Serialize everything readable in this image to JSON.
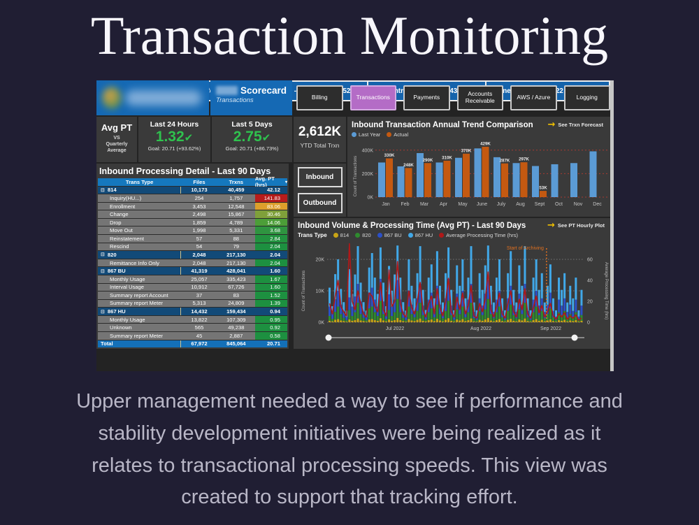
{
  "page": {
    "title": "Transaction Monitoring",
    "description_lines": [
      "Upper management needed a way to see if performance and",
      "stability development initiatives were being realized as it",
      "relates to transactional processing speeds. This view was",
      "created to support that tracking effort."
    ]
  },
  "dashboard": {
    "scorecard": {
      "title": "Scorecard",
      "subtitle": "Transactions"
    },
    "tabs": [
      {
        "label": "Billing",
        "active": false
      },
      {
        "label": "Transactions",
        "active": true
      },
      {
        "label": "Payments",
        "active": false
      },
      {
        "label": "Accounts Receivable",
        "active": false
      },
      {
        "label": "AWS / Azure",
        "active": false
      },
      {
        "label": "Logging",
        "active": false
      }
    ],
    "kpi": {
      "avg_pt": {
        "title": "Avg PT",
        "vs": "VS",
        "subtitle": "Quarterly Average"
      },
      "last24": {
        "label": "Last 24 Hours",
        "value": "1.32",
        "check": "✔",
        "goal": "Goal: 20.71 (+93.62%)"
      },
      "last5": {
        "label": "Last 5 Days",
        "value": "2.75",
        "check": "✔",
        "goal": "Goal: 20.71 (+86.73%)"
      },
      "ytd": {
        "value": "2,612K",
        "label": "YTD Total Trxn"
      }
    },
    "io_buttons": [
      {
        "label": "Inbound"
      },
      {
        "label": "Outbound"
      }
    ],
    "table": {
      "title": "Inbound Processing Detail - Last 90 Days",
      "columns": [
        "Trans Type",
        "Files",
        "Trxns",
        "Avg. PT (hrs)"
      ],
      "rows": [
        {
          "type": "group",
          "name": "814",
          "files": "10,173",
          "trxns": "40,459",
          "avg": "42.12",
          "avg_bg": null
        },
        {
          "type": "child",
          "name": "Inquiry(HU...)",
          "files": "254",
          "trxns": "1,757",
          "avg": "141.83",
          "avg_bg": "#b71c1c"
        },
        {
          "type": "child",
          "name": "Enrollment",
          "files": "3,453",
          "trxns": "12,548",
          "avg": "83.06",
          "avg_bg": "#dd9f2b"
        },
        {
          "type": "child",
          "name": "Change",
          "files": "2,498",
          "trxns": "15,867",
          "avg": "30.46",
          "avg_bg": "#7fa03a"
        },
        {
          "type": "child",
          "name": "Drop",
          "files": "1,859",
          "trxns": "4,789",
          "avg": "14.06",
          "avg_bg": "#4c9e38"
        },
        {
          "type": "child",
          "name": "Move Out",
          "files": "1,998",
          "trxns": "5,331",
          "avg": "3.68",
          "avg_bg": "#2f9440"
        },
        {
          "type": "child",
          "name": "Reinstatement",
          "files": "57",
          "trxns": "88",
          "avg": "2.84",
          "avg_bg": "#22923f"
        },
        {
          "type": "child",
          "name": "Rescind",
          "files": "54",
          "trxns": "79",
          "avg": "2.04",
          "avg_bg": "#1d9040"
        },
        {
          "type": "group",
          "name": "820",
          "files": "2,048",
          "trxns": "217,130",
          "avg": "2.04",
          "avg_bg": null
        },
        {
          "type": "child",
          "name": "Remittance Info Only",
          "files": "2,048",
          "trxns": "217,130",
          "avg": "2.04",
          "avg_bg": "#1d9040"
        },
        {
          "type": "group",
          "name": "867 BU",
          "files": "41,319",
          "trxns": "428,041",
          "avg": "1.60",
          "avg_bg": null
        },
        {
          "type": "child",
          "name": "Monthly Usage",
          "files": "25,057",
          "trxns": "335,423",
          "avg": "1.67",
          "avg_bg": "#1d9040"
        },
        {
          "type": "child",
          "name": "Interval Usage",
          "files": "10,912",
          "trxns": "67,726",
          "avg": "1.60",
          "avg_bg": "#1d9040"
        },
        {
          "type": "child",
          "name": "Summary report Account",
          "files": "37",
          "trxns": "83",
          "avg": "1.52",
          "avg_bg": "#1d9040"
        },
        {
          "type": "child",
          "name": "Summary report Meter",
          "files": "5,313",
          "trxns": "24,809",
          "avg": "1.39",
          "avg_bg": "#1d9040"
        },
        {
          "type": "group",
          "name": "867 HU",
          "files": "14,432",
          "trxns": "159,434",
          "avg": "0.94",
          "avg_bg": null
        },
        {
          "type": "child",
          "name": "Monthly Usage",
          "files": "13,822",
          "trxns": "107,309",
          "avg": "0.95",
          "avg_bg": "#1d9040"
        },
        {
          "type": "child",
          "name": "Unknown",
          "files": "565",
          "trxns": "49,238",
          "avg": "0.92",
          "avg_bg": "#1d9040"
        },
        {
          "type": "child",
          "name": "Summary report Meter",
          "files": "45",
          "trxns": "2,887",
          "avg": "0.58",
          "avg_bg": "#1d9040"
        },
        {
          "type": "total",
          "name": "Total",
          "files": "67,972",
          "trxns": "845,064",
          "avg": "20.71",
          "avg_bg": null
        }
      ]
    },
    "refresh_bar": {
      "label": "Last Dashboard Refresh Date & Time",
      "timezones": [
        "US Eastern - 9/8/2022 7:43:52 AM",
        "US Central - 9/8/2022 6:43:52 AM",
        "Pune, India - 9/8/2022 5:13:52 PM"
      ]
    }
  },
  "chart_data": [
    {
      "type": "bar",
      "title": "Inbound Transaction Annual Trend Comparison",
      "link": "See Trxn Forecast",
      "categories": [
        "Jan",
        "Feb",
        "Mar",
        "Apr",
        "May",
        "June",
        "July",
        "Aug",
        "Sept",
        "Oct",
        "Nov",
        "Dec"
      ],
      "series": [
        {
          "name": "Last Year",
          "color": "#5b9bd5",
          "values": [
            295,
            262,
            375,
            295,
            335,
            415,
            340,
            290,
            265,
            280,
            290,
            390
          ]
        },
        {
          "name": "Actual",
          "color": "#c45911",
          "values": [
            330,
            248,
            290,
            310,
            370,
            429,
            287,
            297,
            53,
            null,
            null,
            null
          ]
        }
      ],
      "labels": [
        "330K",
        "248K",
        "290K",
        "310K",
        "370K",
        "429K",
        "287K",
        "297K",
        "53K",
        "",
        "",
        ""
      ],
      "ylabel": "Count of Transactions",
      "yticks": [
        [
          0,
          "0K"
        ],
        [
          200,
          "200K"
        ],
        [
          400,
          "400K"
        ]
      ],
      "ylim": [
        0,
        450
      ],
      "gridline_color": "#a83b32"
    },
    {
      "type": "stacked-bar-line",
      "title": "Inbound Volume & Processing Time (Avg PT) - Last 90 Days",
      "link": "See PT Hourly Plot",
      "legend_label": "Trans Type",
      "x_section_labels": [
        "Jul 2022",
        "Aug 2022",
        "Sep 2022"
      ],
      "ylabel_left": "Count of Transactions",
      "ylabel_right": "Average Processing Time (hrs)",
      "yticks_left": [
        [
          0,
          "0K"
        ],
        [
          10,
          "10K"
        ],
        [
          20,
          "20K"
        ]
      ],
      "yticks_right": [
        [
          0,
          "0"
        ],
        [
          20,
          "20"
        ],
        [
          40,
          "40"
        ],
        [
          60,
          "60"
        ]
      ],
      "annotation": {
        "text": "Start of Archiving",
        "color": "#e07020",
        "x_index": 77
      },
      "series": [
        {
          "name": "814",
          "color": "#c8a415",
          "values": [
            0.5,
            0.3,
            0.8,
            1.0,
            0.6,
            0.4,
            0.2,
            0.9,
            0.5,
            0.7,
            1.2,
            0.6,
            0.4,
            0.2,
            0.9,
            1.0,
            0.7,
            0.5,
            1.3,
            0.6,
            0.3,
            0.9,
            0.5,
            0.7,
            1.4,
            0.7,
            0.4,
            0.2,
            1.0,
            0.6,
            0.4,
            0.8,
            1.2,
            0.5,
            0.3,
            0.7,
            0.9,
            0.4,
            1.1,
            0.6,
            0.3,
            0.8,
            1.3,
            0.5,
            0.2,
            0.9,
            0.6,
            1.0,
            0.4,
            0.7,
            1.2,
            0.3,
            0.2,
            0.8,
            0.5,
            0.9,
            1.4,
            0.6,
            0.3,
            0.7,
            1.0,
            0.4,
            0.2,
            0.8,
            1.1,
            0.5,
            0.3,
            0.9,
            0.6,
            1.2,
            0.4,
            0.2,
            0.7,
            1.0,
            0.5,
            0.8,
            0.3,
            0.6,
            0.9,
            0.4,
            0.2,
            0.7,
            0.5,
            0.8,
            0.3,
            0.6,
            0.4,
            0.7,
            0.2,
            0.5
          ]
        },
        {
          "name": "820",
          "color": "#2e8b2e",
          "values": [
            1.5,
            0.8,
            2.5,
            4.0,
            2.0,
            1.0,
            0.5,
            3.0,
            1.5,
            2.5,
            5.0,
            2.0,
            1.0,
            0.5,
            3.5,
            4.0,
            2.5,
            1.5,
            5.5,
            2.0,
            0.8,
            3.0,
            1.5,
            2.5,
            6.0,
            2.5,
            1.0,
            0.5,
            4.0,
            2.0,
            1.2,
            2.8,
            5.0,
            1.8,
            0.6,
            2.5,
            3.5,
            1.2,
            4.5,
            2.0,
            1.0,
            2.8,
            5.5,
            1.8,
            0.6,
            3.2,
            2.0,
            4.0,
            1.2,
            2.5,
            5.0,
            1.0,
            0.6,
            2.8,
            1.8,
            3.2,
            6.0,
            2.0,
            1.0,
            2.5,
            4.0,
            1.2,
            0.6,
            2.8,
            4.5,
            1.8,
            1.0,
            3.2,
            2.0,
            5.0,
            1.2,
            0.6,
            2.5,
            4.0,
            1.8,
            2.8,
            1.0,
            2.0,
            3.5,
            1.2,
            0.6,
            2.5,
            1.8,
            2.8,
            1.0,
            2.0,
            1.2,
            2.5,
            0.6,
            1.8
          ]
        },
        {
          "name": "867 BU",
          "color": "#2b50c8",
          "values": [
            3,
            2,
            4,
            5,
            3,
            2,
            1,
            4,
            3,
            5,
            6,
            4,
            2,
            1,
            5,
            6,
            4,
            3,
            7,
            4,
            2,
            5,
            3,
            4,
            6,
            4,
            2,
            1,
            5,
            3,
            2,
            4,
            6,
            3,
            1,
            4,
            5,
            2,
            6,
            3,
            2,
            4,
            7,
            3,
            1,
            5,
            3,
            5,
            2,
            4,
            6,
            2,
            1,
            4,
            3,
            5,
            6,
            3,
            2,
            4,
            5,
            2,
            1,
            4,
            6,
            3,
            2,
            5,
            3,
            6,
            2,
            1,
            4,
            5,
            3,
            4,
            2,
            3,
            5,
            2,
            1,
            4,
            3,
            4,
            2,
            3,
            2,
            4,
            1,
            3
          ]
        },
        {
          "name": "867 HU",
          "color": "#41a8e8",
          "values": [
            6,
            2,
            8,
            10,
            5,
            3,
            2,
            9,
            4,
            7,
            12,
            6,
            3,
            2,
            8,
            11,
            7,
            4,
            10,
            6,
            2,
            9,
            5,
            8,
            11,
            7,
            3,
            2,
            10,
            6,
            4,
            8,
            12,
            5,
            2,
            7,
            9,
            4,
            11,
            6,
            3,
            8,
            10,
            5,
            2,
            9,
            6,
            10,
            4,
            7,
            12,
            3,
            2,
            8,
            5,
            9,
            11,
            6,
            3,
            7,
            10,
            4,
            2,
            8,
            11,
            5,
            3,
            9,
            6,
            12,
            4,
            2,
            7,
            10,
            5,
            8,
            3,
            6,
            9,
            4,
            2,
            7,
            5,
            8,
            3,
            6,
            4,
            7,
            2,
            5
          ]
        }
      ],
      "line": {
        "name": "Average Processing Time (hrs)",
        "color": "#b01818",
        "values": [
          18,
          8,
          25,
          40,
          15,
          10,
          6,
          75,
          20,
          12,
          30,
          18,
          8,
          5,
          28,
          25,
          15,
          10,
          38,
          12,
          6,
          50,
          15,
          20,
          58,
          18,
          8,
          5,
          30,
          14,
          8,
          20,
          38,
          12,
          5,
          18,
          25,
          8,
          32,
          14,
          6,
          20,
          42,
          10,
          5,
          24,
          12,
          28,
          8,
          16,
          35,
          6,
          4,
          18,
          10,
          22,
          48,
          12,
          5,
          15,
          28,
          8,
          4,
          18,
          30,
          10,
          5,
          22,
          12,
          32,
          8,
          4,
          14,
          25,
          9,
          16,
          5,
          10,
          18,
          6,
          3,
          8,
          5,
          9,
          3,
          6,
          4,
          7,
          2,
          4
        ]
      }
    }
  ]
}
